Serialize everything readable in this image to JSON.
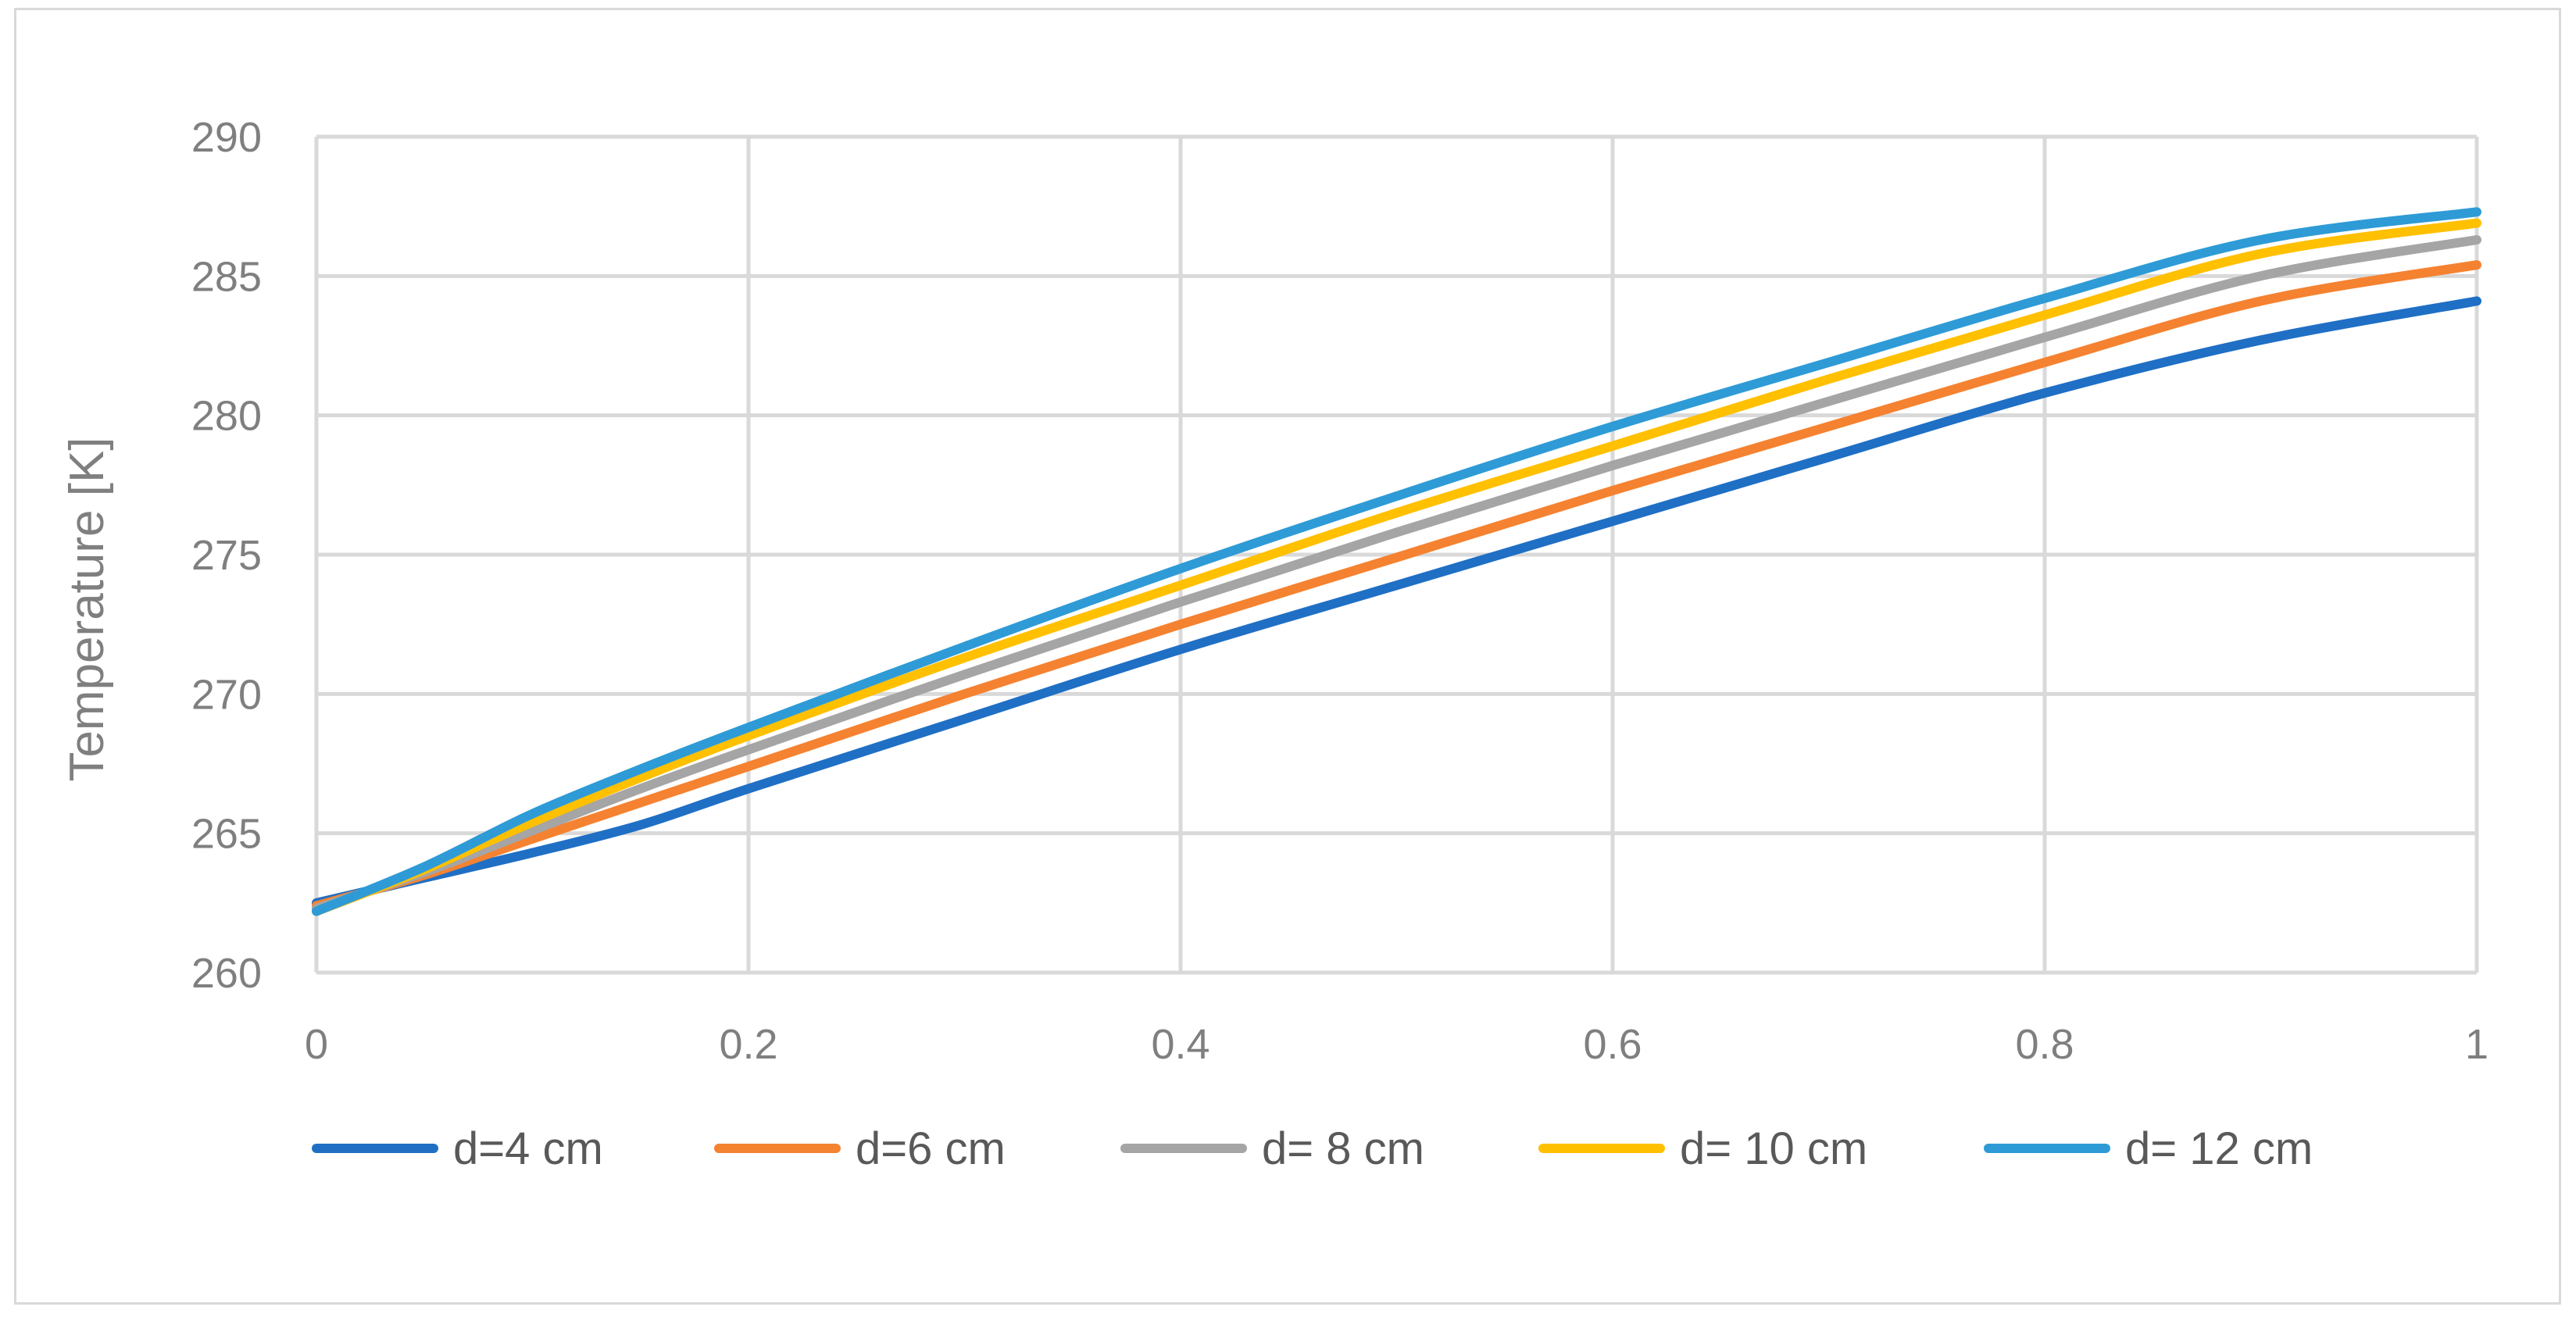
{
  "chart_data": {
    "type": "line",
    "title": "",
    "xlabel": "",
    "ylabel": "Temperature [K]",
    "xlim": [
      0,
      1
    ],
    "ylim": [
      260,
      290
    ],
    "xticks": [
      0,
      0.2,
      0.4,
      0.6,
      0.8,
      1
    ],
    "xtick_labels": [
      "0",
      "0.2",
      "0.4",
      "0.6",
      "0.8",
      "1"
    ],
    "yticks": [
      260,
      265,
      270,
      275,
      280,
      285,
      290
    ],
    "ytick_labels": [
      "260",
      "265",
      "270",
      "275",
      "280",
      "285",
      "290"
    ],
    "grid": true,
    "legend_position": "bottom",
    "x": [
      0,
      0.05,
      0.1,
      0.15,
      0.2,
      0.3,
      0.4,
      0.5,
      0.6,
      0.7,
      0.8,
      0.9,
      1
    ],
    "series": [
      {
        "name": "d=4 cm",
        "color": "#1f6fc5",
        "values": [
          262.5,
          263.4,
          264.3,
          265.3,
          266.6,
          269.1,
          271.6,
          273.9,
          276.2,
          278.5,
          280.8,
          282.7,
          284.1
        ]
      },
      {
        "name": "d=6 cm",
        "color": "#f58230",
        "values": [
          262.4,
          263.5,
          264.8,
          266.1,
          267.4,
          270.0,
          272.5,
          274.9,
          277.3,
          279.6,
          281.9,
          284.1,
          285.4
        ]
      },
      {
        "name": "d= 8 cm",
        "color": "#a5a5a5",
        "values": [
          262.3,
          263.6,
          265.1,
          266.6,
          268.0,
          270.7,
          273.3,
          275.8,
          278.2,
          280.5,
          282.8,
          285.0,
          286.3
        ]
      },
      {
        "name": "d= 10 cm",
        "color": "#ffc000",
        "values": [
          262.2,
          263.7,
          265.4,
          267.0,
          268.5,
          271.3,
          273.9,
          276.5,
          278.9,
          281.3,
          283.6,
          285.8,
          286.9
        ]
      },
      {
        "name": "d= 12 cm",
        "color": "#2e9bd6",
        "values": [
          262.2,
          263.8,
          265.7,
          267.3,
          268.8,
          271.7,
          274.5,
          277.1,
          279.6,
          281.9,
          284.2,
          286.3,
          287.3
        ]
      }
    ]
  }
}
